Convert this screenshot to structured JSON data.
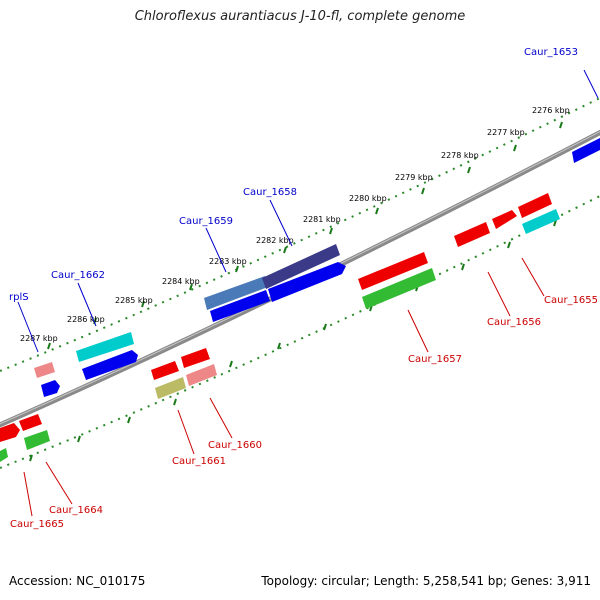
{
  "title": "Chloroflexus aurantiacus J-10-fl, complete genome",
  "accession": "Accession: NC_010175",
  "summary": "Topology: circular; Length: 5,258,541 bp; Genes: 3,911",
  "colors": {
    "backbone": "#888888",
    "tick_plus": "#2a8a2a",
    "label_plus": "#0000cc",
    "label_minus": "#cc0000",
    "red": "#ee0000",
    "pink": "#ee8888",
    "blue": "#0000ee",
    "cyan": "#00cccc",
    "green": "#33bb33",
    "olive": "#bbbb66",
    "purple": "#3a3a88",
    "steelblue": "#4477bb"
  },
  "kbp_labels": [
    "2276 kbp",
    "2277 kbp",
    "2278 kbp",
    "2279 kbp",
    "2280 kbp",
    "2281 kbp",
    "2282 kbp",
    "2283 kbp",
    "2284 kbp",
    "2285 kbp",
    "2286 kbp",
    "2287 kbp"
  ],
  "genes_plus": [
    {
      "name": "Caur_1653"
    },
    {
      "name": "Caur_1658"
    },
    {
      "name": "Caur_1659"
    },
    {
      "name": "Caur_1662"
    },
    {
      "name": "rplS"
    }
  ],
  "genes_minus": [
    {
      "name": "Caur_1655"
    },
    {
      "name": "Caur_1656"
    },
    {
      "name": "Caur_1657"
    },
    {
      "name": "Caur_1660"
    },
    {
      "name": "Caur_1661"
    },
    {
      "name": "Caur_1664"
    },
    {
      "name": "Caur_1665"
    }
  ]
}
